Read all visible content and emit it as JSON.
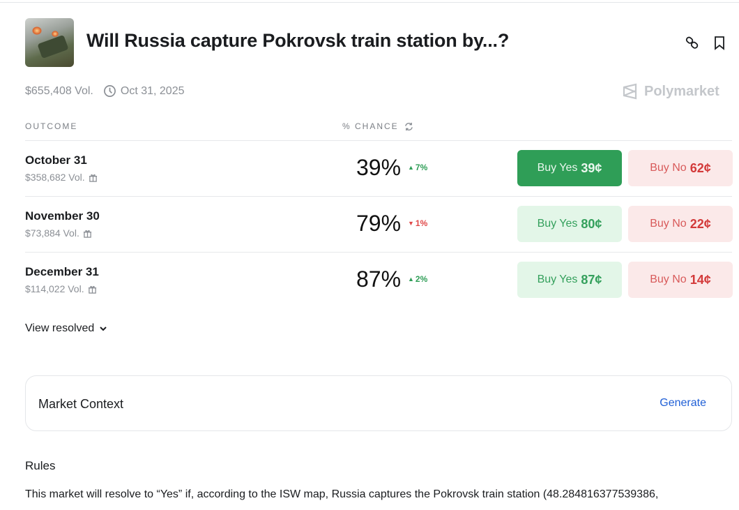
{
  "header": {
    "title": "Will Russia capture Pokrovsk train station by...?",
    "volume": "$655,408 Vol.",
    "end_date": "Oct 31, 2025",
    "brand": "Polymarket"
  },
  "columns": {
    "outcome": "OUTCOME",
    "chance": "% CHANCE"
  },
  "outcomes": [
    {
      "name": "October 31",
      "volume": "$358,682 Vol.",
      "chance": "39%",
      "change": "7%",
      "direction": "up",
      "yes_label": "Buy Yes",
      "yes_price": "39¢",
      "no_label": "Buy No",
      "no_price": "62¢"
    },
    {
      "name": "November 30",
      "volume": "$73,884 Vol.",
      "chance": "79%",
      "change": "1%",
      "direction": "down",
      "yes_label": "Buy Yes",
      "yes_price": "80¢",
      "no_label": "Buy No",
      "no_price": "22¢"
    },
    {
      "name": "December 31",
      "volume": "$114,022 Vol.",
      "chance": "87%",
      "change": "2%",
      "direction": "up",
      "yes_label": "Buy Yes",
      "yes_price": "87¢",
      "no_label": "Buy No",
      "no_price": "14¢"
    }
  ],
  "view_resolved": "View resolved",
  "market_context": {
    "label": "Market Context",
    "action": "Generate"
  },
  "rules": {
    "heading": "Rules",
    "text": "This market will resolve to “Yes” if, according to the ISW map, Russia captures the Pokrovsk train station (48.284816377539386,"
  }
}
